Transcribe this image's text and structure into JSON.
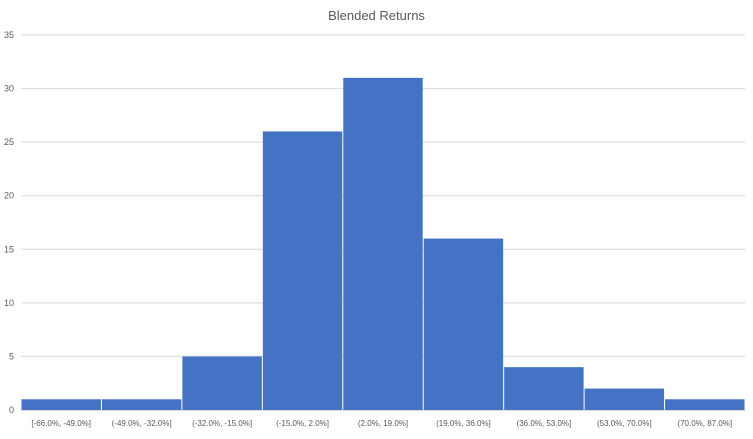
{
  "chart_data": {
    "type": "bar",
    "title": "Blended Returns",
    "xlabel": "",
    "ylabel": "",
    "categories": [
      "[-66.0%, -49.0%]",
      "(-49.0%, -32.0%]",
      "(-32.0%, -15.0%]",
      "(-15.0%, 2.0%]",
      "(2.0%, 19.0%]",
      "(19.0%, 36.0%]",
      "(36.0%, 53.0%]",
      "(53.0%, 70.0%]",
      "(70.0%, 87.0%]"
    ],
    "values": [
      1,
      1,
      5,
      26,
      31,
      16,
      4,
      2,
      1
    ],
    "ylim": [
      0,
      35
    ],
    "yticks": [
      0,
      5,
      10,
      15,
      20,
      25,
      30,
      35
    ],
    "grid": true,
    "legend": "none",
    "bar_color": "#4472C4",
    "grid_color": "#D9D9D9",
    "text_color": "#595959"
  }
}
